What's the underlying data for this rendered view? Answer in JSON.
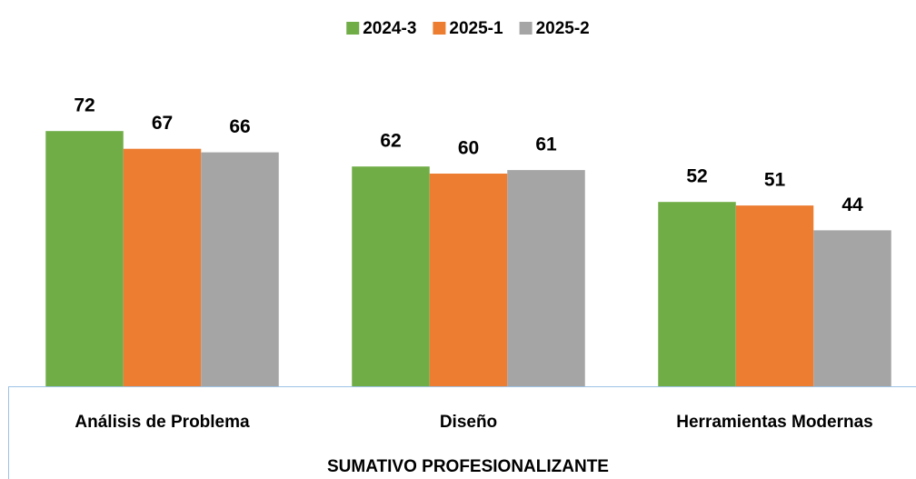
{
  "chart_data": {
    "type": "bar",
    "categories": [
      "Análisis de Problema",
      "Diseño",
      "Herramientas Modernas"
    ],
    "series": [
      {
        "name": "2024-3",
        "color": "#70ad47",
        "values": [
          72,
          62,
          52
        ]
      },
      {
        "name": "2025-1",
        "color": "#ed7d31",
        "values": [
          67,
          60,
          51
        ]
      },
      {
        "name": "2025-2",
        "color": "#a5a5a5",
        "values": [
          66,
          61,
          44
        ]
      }
    ],
    "x_label": "SUMATIVO PROFESIONALIZANTE",
    "ylim": [
      0,
      80
    ],
    "legend": "top"
  }
}
